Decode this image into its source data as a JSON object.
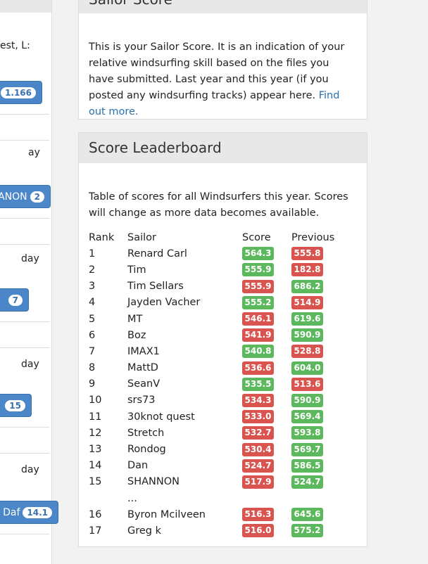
{
  "left": {
    "texts": [
      "est, L:",
      "ay",
      "day",
      "day",
      "day"
    ],
    "buttons": [
      {
        "label": "",
        "badge": "1.166"
      },
      {
        "label": "ANON",
        "badge": "2"
      },
      {
        "label": "",
        "badge": "7"
      },
      {
        "label": "",
        "badge": "15"
      },
      {
        "label": "Daf",
        "badge": "14.1"
      }
    ]
  },
  "sailor_score": {
    "title": "Sailor Score",
    "text": "This is your Sailor Score. It is an indication of your relative windsurfing skill based on the files you have submitted. Last year and this year (if you posted any windsurfing tracks) appear here. ",
    "link": "Find out more."
  },
  "leaderboard": {
    "title": "Score Leaderboard",
    "text": "Table of scores for all Windsurfers this year. Scores will change as more data becomes available.",
    "columns": [
      "Rank",
      "Sailor",
      "Score",
      "Previous"
    ],
    "colors": {
      "green": "#5cb85c",
      "red": "#d9534f"
    },
    "rows": [
      {
        "rank": "1",
        "sailor": "Renard Carl",
        "score": "564.3",
        "score_color": "green",
        "previous": "555.8",
        "previous_color": "red"
      },
      {
        "rank": "2",
        "sailor": "Tim",
        "score": "555.9",
        "score_color": "green",
        "previous": "182.8",
        "previous_color": "red"
      },
      {
        "rank": "3",
        "sailor": "Tim Sellars",
        "score": "555.9",
        "score_color": "red",
        "previous": "686.2",
        "previous_color": "green"
      },
      {
        "rank": "4",
        "sailor": "Jayden Vacher",
        "score": "555.2",
        "score_color": "green",
        "previous": "514.9",
        "previous_color": "red"
      },
      {
        "rank": "5",
        "sailor": "MT",
        "score": "546.1",
        "score_color": "red",
        "previous": "619.6",
        "previous_color": "green"
      },
      {
        "rank": "6",
        "sailor": "Boz",
        "score": "541.9",
        "score_color": "red",
        "previous": "590.9",
        "previous_color": "green"
      },
      {
        "rank": "7",
        "sailor": "IMAX1",
        "score": "540.8",
        "score_color": "green",
        "previous": "528.8",
        "previous_color": "red"
      },
      {
        "rank": "8",
        "sailor": "MattD",
        "score": "536.6",
        "score_color": "red",
        "previous": "604.0",
        "previous_color": "green"
      },
      {
        "rank": "9",
        "sailor": "SeanV",
        "score": "535.5",
        "score_color": "green",
        "previous": "513.6",
        "previous_color": "red"
      },
      {
        "rank": "10",
        "sailor": "srs73",
        "score": "534.3",
        "score_color": "red",
        "previous": "590.9",
        "previous_color": "green"
      },
      {
        "rank": "11",
        "sailor": "30knot quest",
        "score": "533.0",
        "score_color": "red",
        "previous": "569.4",
        "previous_color": "green"
      },
      {
        "rank": "12",
        "sailor": "Stretch",
        "score": "532.7",
        "score_color": "red",
        "previous": "593.8",
        "previous_color": "green"
      },
      {
        "rank": "13",
        "sailor": "Rondog",
        "score": "530.4",
        "score_color": "red",
        "previous": "569.7",
        "previous_color": "green"
      },
      {
        "rank": "14",
        "sailor": "Dan",
        "score": "524.7",
        "score_color": "red",
        "previous": "586.5",
        "previous_color": "green"
      },
      {
        "rank": "15",
        "sailor": "SHANNON",
        "score": "517.9",
        "score_color": "red",
        "previous": "524.7",
        "previous_color": "green"
      },
      {
        "rank": "",
        "sailor": "...",
        "score": "",
        "score_color": "",
        "previous": "",
        "previous_color": ""
      },
      {
        "rank": "16",
        "sailor": "Byron Mcilveen",
        "score": "516.3",
        "score_color": "red",
        "previous": "645.6",
        "previous_color": "green"
      },
      {
        "rank": "17",
        "sailor": "Greg k",
        "score": "516.0",
        "score_color": "red",
        "previous": "575.2",
        "previous_color": "green"
      }
    ]
  }
}
